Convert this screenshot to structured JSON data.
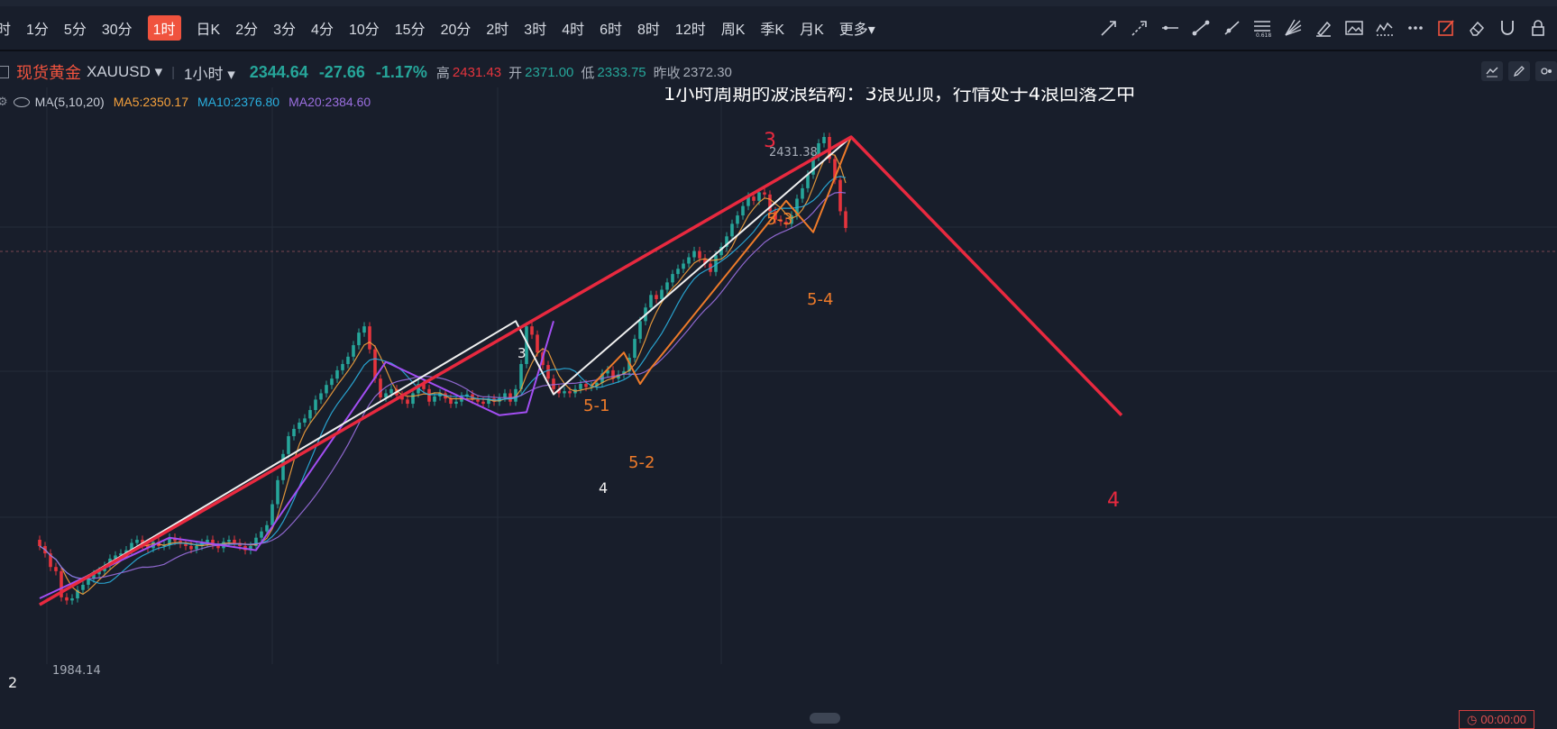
{
  "periods": [
    "时",
    "1分",
    "5分",
    "30分",
    "1时",
    "日K",
    "2分",
    "3分",
    "4分",
    "10分",
    "15分",
    "20分",
    "2时",
    "3时",
    "4时",
    "6时",
    "8时",
    "12时",
    "周K",
    "季K",
    "月K",
    "更多▾"
  ],
  "active_period": "1时",
  "symbol": {
    "name": "现货黄金",
    "code": "XAUUSD ▾",
    "interval": "1小时 ▾",
    "price": "2344.64",
    "change": "-27.66",
    "change_pct": "-1.17%",
    "high_label": "高",
    "high": "2431.43",
    "open_label": "开",
    "open": "2371.00",
    "low_label": "低",
    "low": "2333.75",
    "prev_label": "昨收",
    "prev": "2372.30"
  },
  "ma": {
    "label": "MA(5,10,20)",
    "ma5": "MA5:2350.17",
    "ma10": "MA10:2376.80",
    "ma20": "MA20:2384.60"
  },
  "colors": {
    "up": "#26a69a",
    "down": "#e5343d",
    "ma5": "#f5a13c",
    "ma10": "#2ab0e0",
    "ma20": "#9b6fe0",
    "wave_red": "#e8293f",
    "wave_white": "#f0f0f0",
    "wave_orange": "#ee7b2a",
    "wave_purple": "#a24ef2"
  },
  "chart_data": {
    "type": "line",
    "title": "1小时周期的波浪结构：3浪见顶，行情处于4浪回落之中",
    "price_labels": {
      "high": "2431.38",
      "low": "1984.14"
    },
    "ylim": [
      1960,
      2460
    ],
    "wave_labels": [
      {
        "text": "3",
        "color": "red"
      },
      {
        "text": "4",
        "color": "red"
      },
      {
        "text": "3",
        "color": "white"
      },
      {
        "text": "4",
        "color": "white"
      },
      {
        "text": "2",
        "color": "white"
      },
      {
        "text": "5-1",
        "color": "orange"
      },
      {
        "text": "5-2",
        "color": "orange"
      },
      {
        "text": "5-3",
        "color": "orange"
      },
      {
        "text": "5-4",
        "color": "orange"
      }
    ],
    "major_wave": [
      [
        0,
        1984
      ],
      [
        150,
        2431
      ],
      [
        200,
        2165
      ]
    ],
    "minor_wave": [
      [
        0,
        1984
      ],
      [
        88,
        2255
      ],
      [
        95,
        2185
      ],
      [
        150,
        2431
      ]
    ],
    "purple_wave": [
      [
        0,
        1990
      ],
      [
        24,
        2048
      ],
      [
        40,
        2036
      ],
      [
        64,
        2216
      ],
      [
        85,
        2165
      ],
      [
        90,
        2168
      ],
      [
        95,
        2255
      ]
    ],
    "orange_wave": [
      [
        102,
        2193
      ],
      [
        108,
        2225
      ],
      [
        111,
        2195
      ],
      [
        113,
        2210
      ],
      [
        138,
        2370
      ],
      [
        143,
        2340
      ],
      [
        150,
        2431
      ]
    ],
    "candles_close": [
      2040,
      2033,
      2020,
      2016,
      1991,
      1988,
      1990,
      1998,
      2003,
      2009,
      2013,
      2016,
      2021,
      2028,
      2031,
      2033,
      2036,
      2043,
      2046,
      2041,
      2038,
      2044,
      2040,
      2041,
      2048,
      2045,
      2042,
      2040,
      2037,
      2040,
      2043,
      2046,
      2041,
      2038,
      2044,
      2046,
      2043,
      2040,
      2036,
      2040,
      2048,
      2054,
      2060,
      2080,
      2103,
      2128,
      2145,
      2152,
      2158,
      2162,
      2170,
      2180,
      2186,
      2194,
      2200,
      2208,
      2214,
      2221,
      2232,
      2244,
      2250,
      2228,
      2200,
      2182,
      2186,
      2190,
      2184,
      2180,
      2176,
      2186,
      2195,
      2190,
      2178,
      2183,
      2186,
      2181,
      2176,
      2178,
      2183,
      2185,
      2180,
      2178,
      2176,
      2181,
      2178,
      2182,
      2186,
      2178,
      2190,
      2214,
      2250,
      2242,
      2225,
      2213,
      2200,
      2190,
      2186,
      2188,
      2186,
      2190,
      2195,
      2192,
      2193,
      2196,
      2205,
      2208,
      2200,
      2204,
      2207,
      2220,
      2238,
      2255,
      2268,
      2280,
      2276,
      2285,
      2292,
      2300,
      2305,
      2310,
      2316,
      2322,
      2315,
      2310,
      2302,
      2318,
      2326,
      2336,
      2348,
      2356,
      2365,
      2374,
      2370,
      2378,
      2376,
      2360,
      2352,
      2350,
      2348,
      2356,
      2372,
      2382,
      2395,
      2412,
      2425,
      2431,
      2410,
      2390,
      2360,
      2344
    ]
  }
}
